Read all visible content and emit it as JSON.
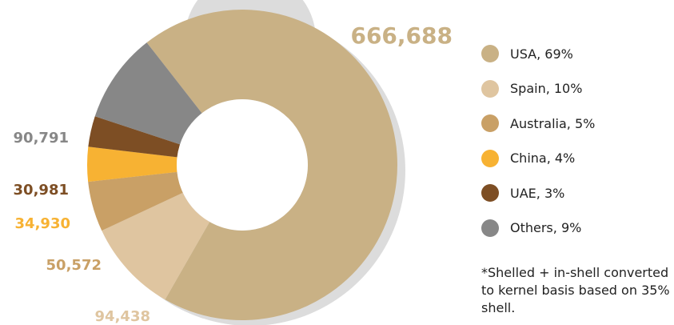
{
  "chart_data": {
    "type": "pie",
    "style": "donut",
    "legend_position": "right",
    "slices": [
      {
        "label": "USA, 69%",
        "value": 666688,
        "value_label": "666,688",
        "color": "#C9B185"
      },
      {
        "label": "Spain, 10%",
        "value": 94438,
        "value_label": "94,438",
        "color": "#DFC5A0"
      },
      {
        "label": "Australia, 5%",
        "value": 50572,
        "value_label": "50,572",
        "color": "#C9A066"
      },
      {
        "label": "China, 4%",
        "value": 34930,
        "value_label": "34,930",
        "color": "#F7B233"
      },
      {
        "label": "UAE, 3%",
        "value": 30981,
        "value_label": "30,981",
        "color": "#7D4E24"
      },
      {
        "label": "Others, 9%",
        "value": 90791,
        "value_label": "90,791",
        "color": "#878787"
      }
    ]
  },
  "footnote": "*Shelled + in-shell converted to kernel basis based on 35% shell."
}
